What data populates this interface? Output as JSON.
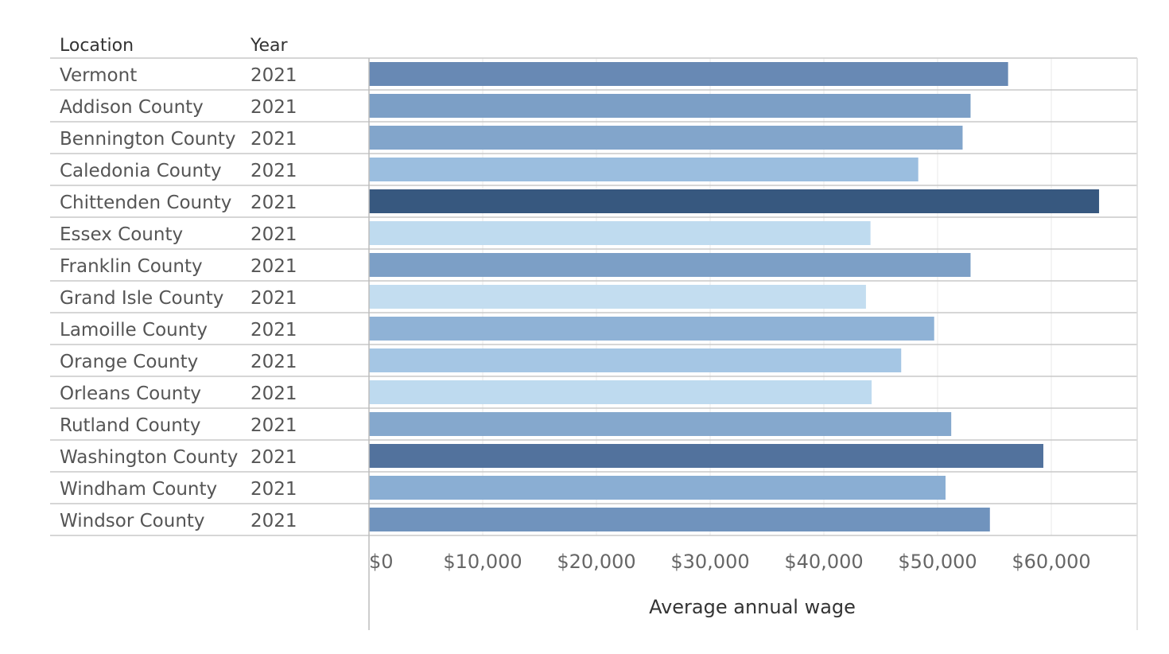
{
  "chart_data": {
    "type": "bar",
    "orientation": "horizontal",
    "row_headers": {
      "location": "Location",
      "year": "Year"
    },
    "categories": [
      "Vermont",
      "Addison County",
      "Bennington County",
      "Caledonia County",
      "Chittenden County",
      "Essex County",
      "Franklin County",
      "Grand Isle County",
      "Lamoille County",
      "Orange County",
      "Orleans County",
      "Rutland County",
      "Washington County",
      "Windham County",
      "Windsor County"
    ],
    "years": [
      "2021",
      "2021",
      "2021",
      "2021",
      "2021",
      "2021",
      "2021",
      "2021",
      "2021",
      "2021",
      "2021",
      "2021",
      "2021",
      "2021",
      "2021"
    ],
    "values": [
      56200,
      52900,
      52200,
      48300,
      64200,
      44100,
      52900,
      43700,
      49700,
      46800,
      44200,
      51200,
      59300,
      50700,
      54600
    ],
    "colors": [
      "#6889b4",
      "#7c9fc6",
      "#82a5cb",
      "#9bbedf",
      "#37587f",
      "#bfdbef",
      "#7c9fc6",
      "#c3ddf0",
      "#8fb2d6",
      "#a5c6e4",
      "#bedaef",
      "#85a8cd",
      "#52729d",
      "#8aaed3",
      "#7093bd"
    ],
    "xlabel": "Average annual wage",
    "ylabel": "",
    "xlim": [
      0,
      67500
    ],
    "xticks": [
      0,
      10000,
      20000,
      30000,
      40000,
      50000,
      60000
    ],
    "xtick_labels": [
      "$0",
      "$10,000",
      "$20,000",
      "$30,000",
      "$40,000",
      "$50,000",
      "$60,000"
    ],
    "grid": true,
    "legend": "none"
  }
}
